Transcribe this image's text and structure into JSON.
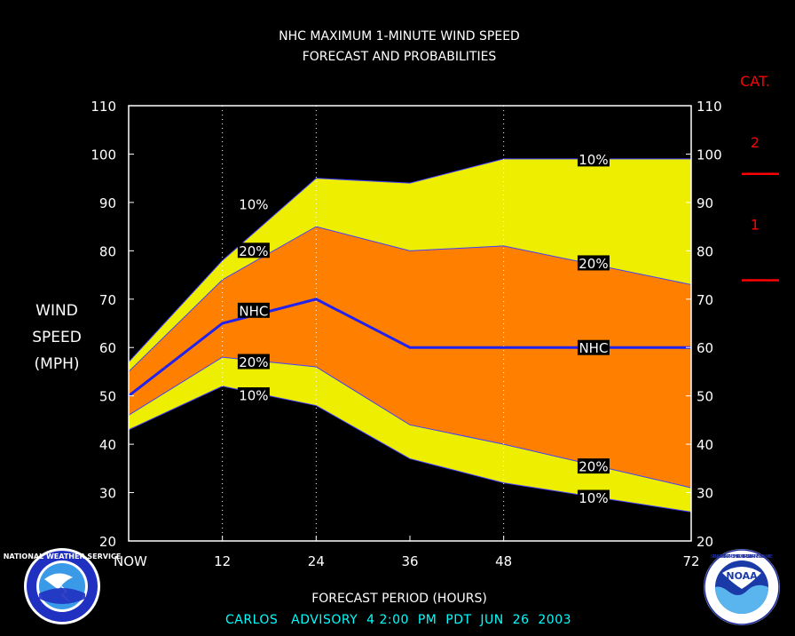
{
  "title_line1": "NHC MAXIMUM 1-MINUTE WIND SPEED",
  "title_line2": "FORECAST AND PROBABILITIES",
  "ylabel_lines": [
    "WIND",
    "SPEED",
    "(MPH)"
  ],
  "xlabel": "FORECAST PERIOD (HOURS)",
  "footer": "CARLOS   ADVISORY  4 2:00  PM  PDT  JUN  26  2003",
  "cat_header": "CAT.",
  "categories": [
    {
      "label": "2",
      "value": 102.5
    },
    {
      "label": "1",
      "value": 85.5
    }
  ],
  "cat_thresholds": [
    96,
    74
  ],
  "colors": {
    "background": "#000000",
    "band_10": "#eeee00",
    "band_20": "#ff8000",
    "nhc_line": "#2222ee",
    "edge": "#4040ff",
    "text": "#ffffff",
    "cat": "#ff0000",
    "footer": "#00ffff"
  },
  "logos": {
    "left": "nws-logo",
    "left_text": "NATIONAL WEATHER SERVICE",
    "right": "noaa-logo",
    "right_text": "NOAA",
    "right_ring_text": "NATIONAL OCEANIC AND ATMOSPHERIC ADMINISTRATION · U.S. DEPARTMENT OF COMMERCE"
  },
  "chart_data": {
    "type": "area",
    "x": [
      0,
      12,
      24,
      36,
      48,
      72
    ],
    "x_tick_labels": [
      "NOW",
      "12",
      "24",
      "36",
      "48",
      "72"
    ],
    "xlim": [
      0,
      72
    ],
    "ylim": [
      20,
      110
    ],
    "y_ticks": [
      20,
      30,
      40,
      50,
      60,
      70,
      80,
      90,
      100,
      110
    ],
    "gridlines_x": [
      12,
      24,
      48
    ],
    "series": [
      {
        "name": "10%",
        "values": [
          57,
          78,
          95,
          94,
          99,
          99
        ]
      },
      {
        "name": "20%",
        "values": [
          55,
          74,
          85,
          80,
          81,
          73
        ]
      },
      {
        "name": "NHC",
        "values": [
          50,
          65,
          70,
          60,
          60,
          60
        ]
      },
      {
        "name": "20%",
        "values": [
          46,
          58,
          56,
          44,
          40,
          31
        ]
      },
      {
        "name": "10%",
        "values": [
          43,
          52,
          48,
          37,
          32,
          26
        ]
      }
    ],
    "labels": [
      {
        "text": "10%",
        "x": 16,
        "y": 89.7
      },
      {
        "text": "20%",
        "x": 16,
        "y": 80.1
      },
      {
        "text": "NHC",
        "x": 16,
        "y": 67.7
      },
      {
        "text": "20%",
        "x": 16,
        "y": 57.1
      },
      {
        "text": "10%",
        "x": 16,
        "y": 50.2
      },
      {
        "text": "10%",
        "x": 59.5,
        "y": 99
      },
      {
        "text": "20%",
        "x": 59.5,
        "y": 77.5
      },
      {
        "text": "NHC",
        "x": 59.5,
        "y": 60
      },
      {
        "text": "20%",
        "x": 59.5,
        "y": 35.5
      },
      {
        "text": "10%",
        "x": 59.5,
        "y": 29
      }
    ]
  }
}
